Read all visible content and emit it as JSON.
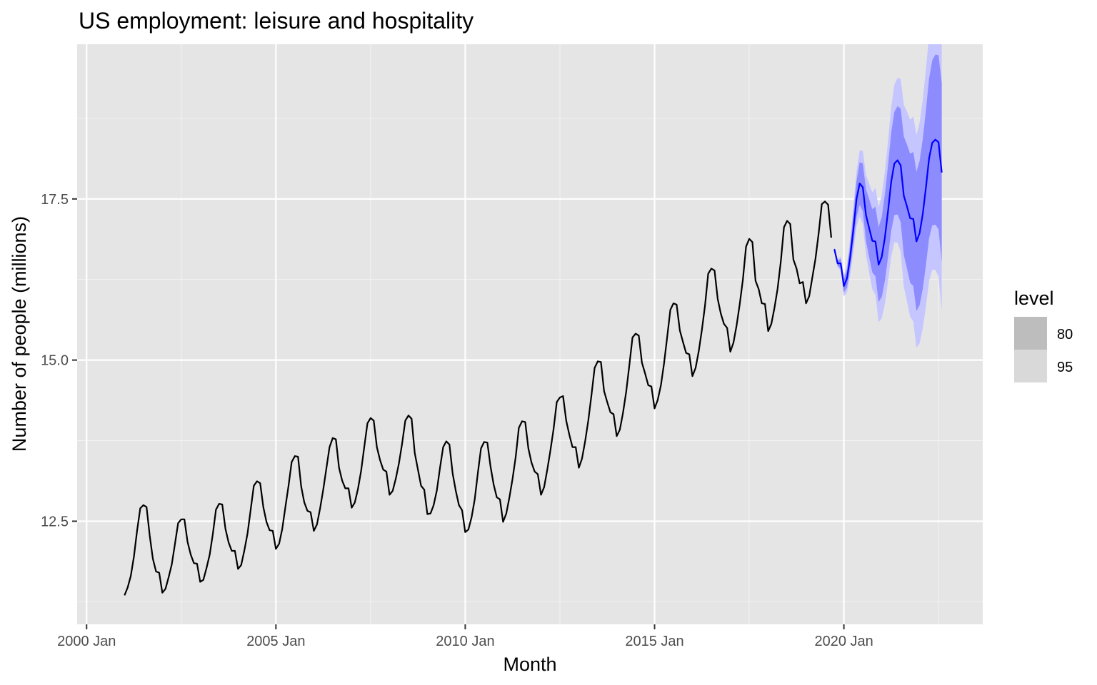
{
  "chart_data": {
    "type": "line",
    "title": "US employment: leisure and hospitality",
    "xlabel": "Month",
    "ylabel": "Number of people (millions)",
    "x_ticks": [
      "2000 Jan",
      "2005 Jan",
      "2010 Jan",
      "2015 Jan",
      "2020 Jan"
    ],
    "y_ticks": [
      "12.5",
      "15.0",
      "17.5"
    ],
    "xlim": [
      "1999-10",
      "2023-09"
    ],
    "ylim": [
      10.9,
      19.9
    ],
    "grid": true,
    "legend": {
      "title": "level",
      "position": "right",
      "entries": [
        {
          "label": "80",
          "color": "#bdbdbd"
        },
        {
          "label": "95",
          "color": "#d9d9d9"
        }
      ]
    },
    "colors": {
      "panel": "#e5e5e5",
      "history": "#000000",
      "forecast": "#0000ff",
      "band_80": "#8c8cff",
      "band_95": "#c5c5ff"
    },
    "series": [
      {
        "name": "history",
        "start": "2001-01",
        "values": [
          11.35,
          11.47,
          11.65,
          11.95,
          12.35,
          12.7,
          12.75,
          12.72,
          12.28,
          11.92,
          11.72,
          11.7,
          11.39,
          11.45,
          11.63,
          11.83,
          12.15,
          12.47,
          12.53,
          12.53,
          12.18,
          11.98,
          11.85,
          11.84,
          11.56,
          11.59,
          11.77,
          11.98,
          12.3,
          12.68,
          12.77,
          12.76,
          12.38,
          12.17,
          12.04,
          12.04,
          11.76,
          11.82,
          12.05,
          12.31,
          12.68,
          13.05,
          13.12,
          13.09,
          12.72,
          12.49,
          12.36,
          12.35,
          12.07,
          12.15,
          12.38,
          12.72,
          13.05,
          13.42,
          13.51,
          13.5,
          13.04,
          12.79,
          12.66,
          12.64,
          12.35,
          12.45,
          12.7,
          12.99,
          13.32,
          13.65,
          13.79,
          13.77,
          13.33,
          13.13,
          13.01,
          13.01,
          12.71,
          12.79,
          13.0,
          13.28,
          13.65,
          14.02,
          14.1,
          14.06,
          13.65,
          13.45,
          13.3,
          13.27,
          12.91,
          12.97,
          13.16,
          13.4,
          13.71,
          14.06,
          14.14,
          14.09,
          13.56,
          13.3,
          13.05,
          12.99,
          12.61,
          12.62,
          12.75,
          12.98,
          13.33,
          13.65,
          13.74,
          13.69,
          13.24,
          12.97,
          12.75,
          12.67,
          12.33,
          12.37,
          12.56,
          12.84,
          13.25,
          13.63,
          13.73,
          13.72,
          13.35,
          13.07,
          12.87,
          12.84,
          12.49,
          12.62,
          12.87,
          13.16,
          13.5,
          13.95,
          14.05,
          14.04,
          13.63,
          13.41,
          13.27,
          13.23,
          12.91,
          13.03,
          13.3,
          13.6,
          13.93,
          14.35,
          14.42,
          14.44,
          14.06,
          13.84,
          13.65,
          13.65,
          13.33,
          13.47,
          13.74,
          14.06,
          14.46,
          14.88,
          14.98,
          14.97,
          14.52,
          14.35,
          14.19,
          14.16,
          13.82,
          13.92,
          14.18,
          14.51,
          14.92,
          15.35,
          15.41,
          15.38,
          14.96,
          14.79,
          14.61,
          14.59,
          14.25,
          14.38,
          14.61,
          14.95,
          15.36,
          15.78,
          15.88,
          15.86,
          15.46,
          15.28,
          15.11,
          15.09,
          14.75,
          14.88,
          15.14,
          15.47,
          15.85,
          16.34,
          16.42,
          16.39,
          15.95,
          15.72,
          15.56,
          15.5,
          15.13,
          15.27,
          15.54,
          15.87,
          16.25,
          16.76,
          16.88,
          16.83,
          16.23,
          16.1,
          15.88,
          15.87,
          15.45,
          15.56,
          15.81,
          16.11,
          16.52,
          17.06,
          17.16,
          17.11,
          16.56,
          16.42,
          16.19,
          16.21,
          15.88,
          15.99,
          16.28,
          16.57,
          16.97,
          17.42,
          17.46,
          17.41,
          16.9
        ]
      },
      {
        "name": "forecast",
        "start": "2019-10",
        "values": [
          16.72,
          16.5,
          16.5,
          16.15,
          16.27,
          16.6,
          17.03,
          17.5,
          17.74,
          17.68,
          17.25,
          17.05,
          16.85,
          16.84,
          16.48,
          16.6,
          16.9,
          17.32,
          17.77,
          18.05,
          18.1,
          18.02,
          17.55,
          17.38,
          17.2,
          17.19,
          16.84,
          16.97,
          17.27,
          17.68,
          18.13,
          18.37,
          18.42,
          18.38,
          17.91
        ],
        "lo80": [
          16.7,
          16.46,
          16.43,
          16.05,
          16.13,
          16.42,
          16.8,
          17.22,
          17.41,
          17.31,
          16.85,
          16.6,
          16.36,
          16.3,
          15.9,
          15.98,
          16.23,
          16.61,
          17.01,
          17.25,
          17.26,
          17.14,
          16.63,
          16.42,
          16.2,
          16.15,
          15.76,
          15.85,
          16.11,
          16.48,
          16.89,
          17.09,
          17.1,
          17.03,
          16.52
        ],
        "hi80": [
          16.74,
          16.54,
          16.57,
          16.25,
          16.41,
          16.78,
          17.26,
          17.78,
          18.07,
          18.05,
          17.65,
          17.5,
          17.34,
          17.38,
          17.06,
          17.22,
          17.57,
          18.03,
          18.53,
          18.85,
          18.94,
          18.9,
          18.47,
          18.34,
          18.2,
          18.23,
          17.92,
          18.09,
          18.43,
          18.88,
          19.37,
          19.65,
          19.74,
          19.73,
          19.3
        ],
        "lo95": [
          16.69,
          16.44,
          16.39,
          15.99,
          16.05,
          16.32,
          16.68,
          17.07,
          17.23,
          17.11,
          16.63,
          16.36,
          16.1,
          16.01,
          15.59,
          15.65,
          15.87,
          16.23,
          16.61,
          16.83,
          16.82,
          16.68,
          16.14,
          15.91,
          15.67,
          15.6,
          15.19,
          15.26,
          15.5,
          15.84,
          16.23,
          16.4,
          16.4,
          16.3,
          15.76
        ],
        "hi95": [
          16.75,
          16.56,
          16.61,
          16.31,
          16.49,
          16.88,
          17.38,
          17.93,
          18.25,
          18.25,
          17.87,
          17.74,
          17.6,
          17.67,
          17.37,
          17.55,
          17.93,
          18.41,
          18.93,
          19.27,
          19.38,
          19.36,
          18.96,
          18.85,
          18.73,
          18.78,
          18.49,
          18.68,
          19.04,
          19.52,
          20.03,
          20.34,
          20.44,
          20.46,
          20.06
        ]
      }
    ]
  }
}
